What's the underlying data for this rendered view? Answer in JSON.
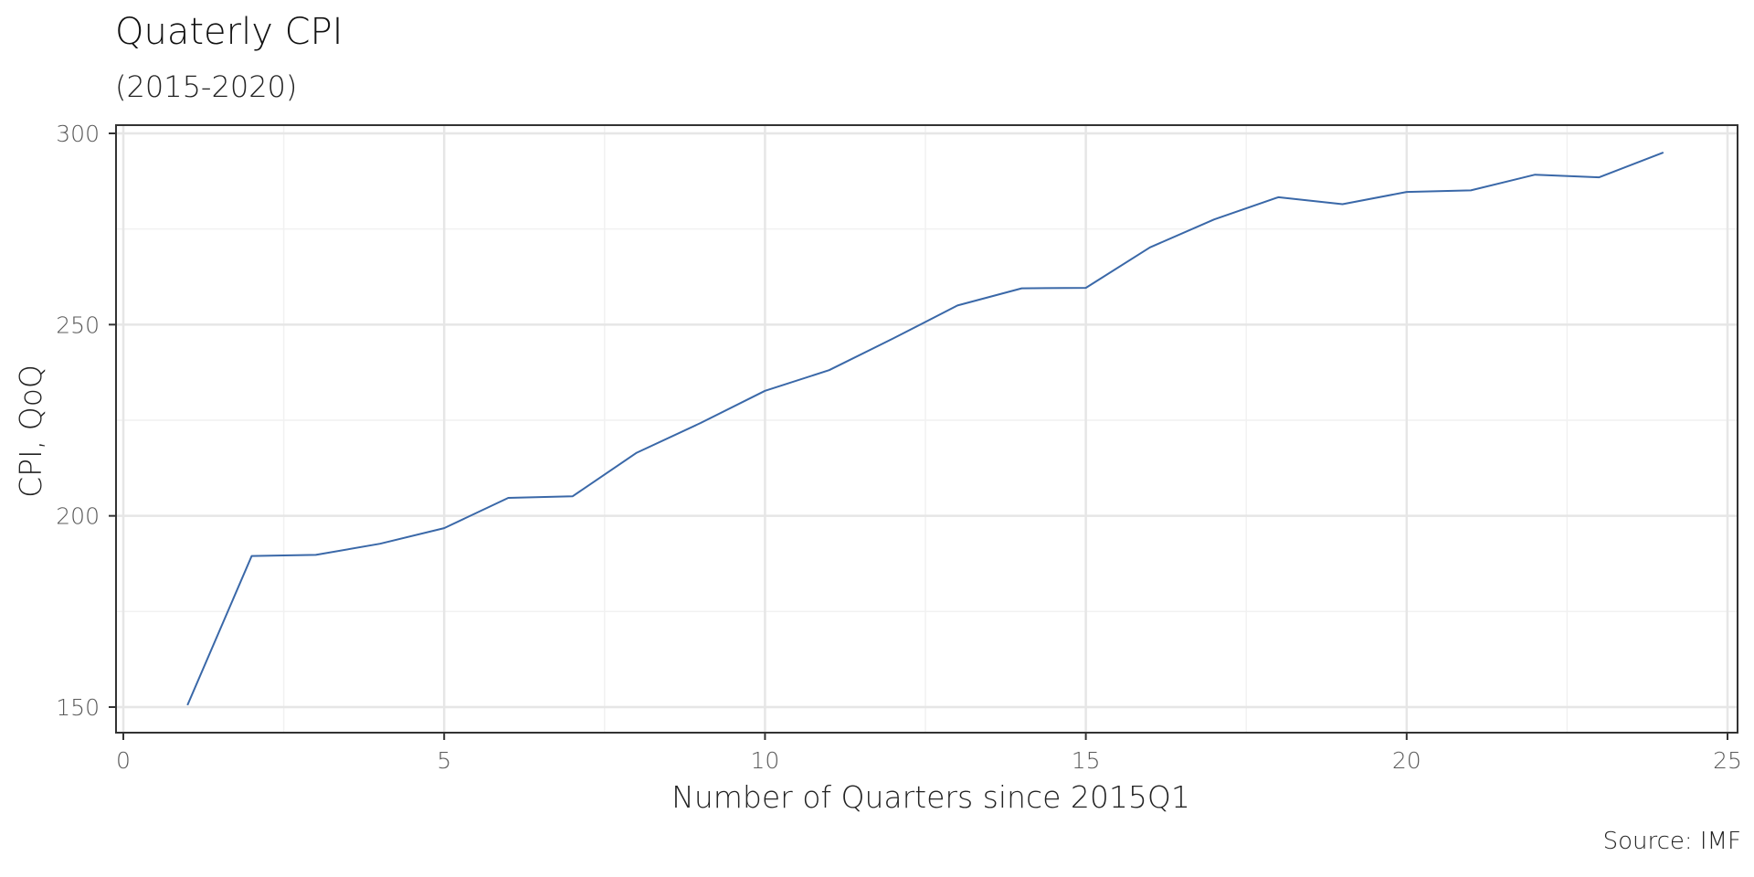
{
  "chart_data": {
    "type": "line",
    "title": "Quaterly CPI",
    "subtitle": "(2015-2020)",
    "caption": "Source: IMF",
    "xlabel": "Number of Quarters since 2015Q1",
    "ylabel": "CPI, QoQ",
    "xlim": [
      0,
      25
    ],
    "ylim": [
      150,
      300
    ],
    "x_ticks": [
      0,
      5,
      10,
      15,
      20,
      25
    ],
    "y_ticks": [
      150,
      200,
      250,
      300
    ],
    "x_tick_labels": [
      "0",
      "5",
      "10",
      "15",
      "20",
      "25"
    ],
    "y_tick_labels": [
      "150",
      "200",
      "250",
      "300"
    ],
    "grid": true,
    "line_color": "#3a68a8",
    "series": [
      {
        "x": [
          1,
          2,
          3,
          4,
          5,
          6,
          7,
          8,
          9,
          10,
          11,
          12,
          13,
          14,
          15,
          16,
          17,
          18,
          19,
          20,
          21,
          22,
          23,
          24
        ],
        "values": [
          150.5,
          189.5,
          189.8,
          192.7,
          196.8,
          204.7,
          205.1,
          216.5,
          224.3,
          232.7,
          238.1,
          246.4,
          255.0,
          259.5,
          259.6,
          270.2,
          277.5,
          283.3,
          281.5,
          284.7,
          285.1,
          289.2,
          288.5,
          295.0
        ]
      }
    ]
  }
}
